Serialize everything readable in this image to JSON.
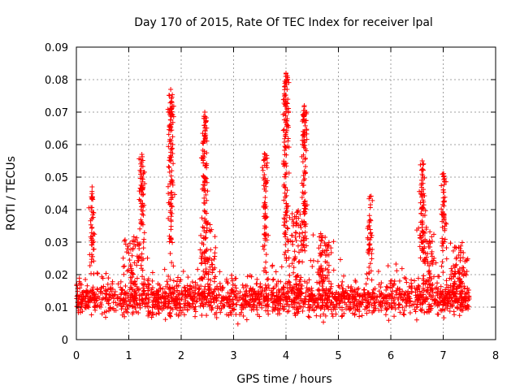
{
  "chart_data": {
    "type": "scatter",
    "title": "Day 170 of 2015, Rate Of TEC Index for receiver lpal",
    "xlabel": "GPS time / hours",
    "ylabel": "ROTI / TECUs",
    "xlim": [
      0,
      8
    ],
    "ylim": [
      0,
      0.09
    ],
    "xticks": [
      "0",
      "1",
      "2",
      "3",
      "4",
      "5",
      "6",
      "7",
      "8"
    ],
    "yticks": [
      "0",
      "0.01",
      "0.02",
      "0.03",
      "0.04",
      "0.05",
      "0.06",
      "0.07",
      "0.08",
      "0.09"
    ],
    "grid": true,
    "marker": "+",
    "series_color": "#ff0000",
    "data_extent_hours": [
      0,
      7.5
    ],
    "baseline_roti": 0.012,
    "peaks": [
      {
        "x": 0.3,
        "y": 0.047
      },
      {
        "x": 1.25,
        "y": 0.057
      },
      {
        "x": 1.8,
        "y": 0.077
      },
      {
        "x": 2.45,
        "y": 0.07
      },
      {
        "x": 3.6,
        "y": 0.057
      },
      {
        "x": 4.0,
        "y": 0.082
      },
      {
        "x": 4.35,
        "y": 0.072
      },
      {
        "x": 5.6,
        "y": 0.044
      },
      {
        "x": 6.6,
        "y": 0.055
      },
      {
        "x": 7.0,
        "y": 0.051
      }
    ]
  }
}
